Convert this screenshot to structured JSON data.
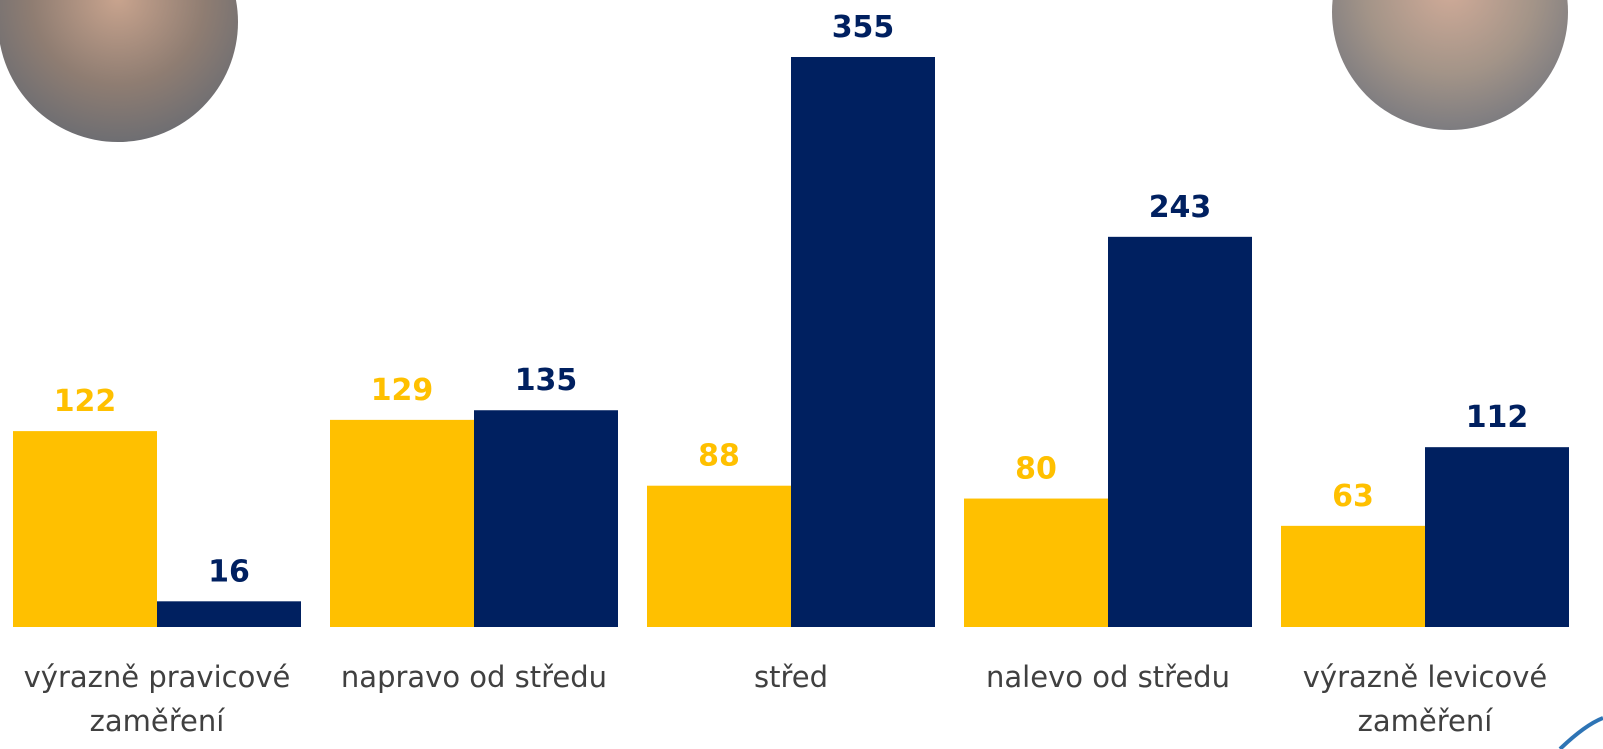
{
  "chart_data": {
    "type": "bar",
    "categories": [
      "výrazně pravicové zaměření",
      "napravo od středu",
      "střed",
      "nalevo od středu",
      "výrazně levicové zaměření"
    ],
    "series": [
      {
        "color": "#FFC000",
        "values": [
          122,
          129,
          88,
          80,
          63
        ]
      },
      {
        "color": "#002060",
        "values": [
          16,
          135,
          355,
          243,
          112
        ]
      }
    ]
  }
}
